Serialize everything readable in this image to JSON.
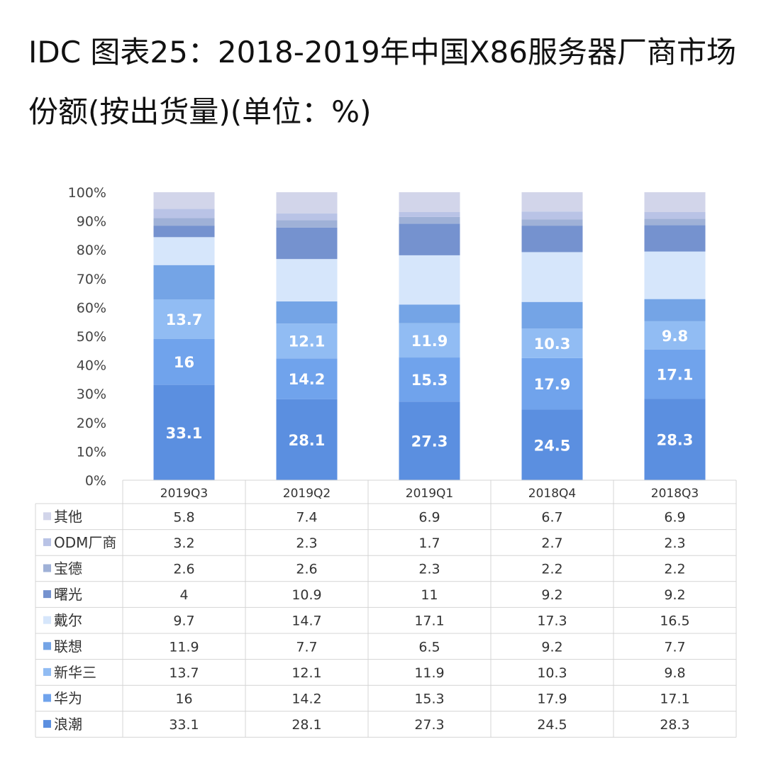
{
  "title": "IDC 图表25：2018-2019年中国X86服务器厂商市场份额(按出货量)(单位：%)",
  "chart_data": {
    "type": "bar",
    "stacked": true,
    "categories": [
      "2019Q3",
      "2019Q2",
      "2019Q1",
      "2018Q4",
      "2018Q3"
    ],
    "y_ticks": [
      "0%",
      "10%",
      "20%",
      "30%",
      "40%",
      "50%",
      "60%",
      "70%",
      "80%",
      "90%",
      "100%"
    ],
    "ylim": [
      0,
      100
    ],
    "grid": false,
    "legend_placement": "data table below chart",
    "series": [
      {
        "name": "浪潮",
        "color": "#5b8fe0",
        "values": [
          33.1,
          28.1,
          27.3,
          24.5,
          28.3
        ],
        "labels": [
          "33.1",
          "28.1",
          "27.3",
          "24.5",
          "28.3"
        ]
      },
      {
        "name": "华为",
        "color": "#70a3ec",
        "values": [
          16,
          14.2,
          15.3,
          17.9,
          17.1
        ],
        "labels": [
          "16",
          "14.2",
          "15.3",
          "17.9",
          "17.1"
        ]
      },
      {
        "name": "新华三",
        "color": "#91bcf3",
        "values": [
          13.7,
          12.1,
          11.9,
          10.3,
          9.8
        ],
        "labels": [
          "13.7",
          "12.1",
          "11.9",
          "10.3",
          "9.8"
        ]
      },
      {
        "name": "联想",
        "color": "#74a4e6",
        "values": [
          11.9,
          7.7,
          6.5,
          9.2,
          7.7
        ]
      },
      {
        "name": "戴尔",
        "color": "#d6e6fb",
        "values": [
          9.7,
          14.7,
          17.1,
          17.3,
          16.5
        ]
      },
      {
        "name": "曙光",
        "color": "#7592cf",
        "values": [
          4,
          10.9,
          11,
          9.2,
          9.2
        ]
      },
      {
        "name": "宝德",
        "color": "#9fb1d7",
        "values": [
          2.6,
          2.6,
          2.3,
          2.2,
          2.2
        ]
      },
      {
        "name": "ODM厂商",
        "color": "#b9c3e6",
        "values": [
          3.2,
          2.3,
          1.7,
          2.7,
          2.3
        ]
      },
      {
        "name": "其他",
        "color": "#d2d5ea",
        "values": [
          5.8,
          7.4,
          6.9,
          6.7,
          6.9
        ]
      }
    ],
    "table": {
      "row_order": [
        "其他",
        "ODM厂商",
        "宝德",
        "曙光",
        "戴尔",
        "联想",
        "新华三",
        "华为",
        "浪潮"
      ],
      "rows": [
        {
          "name": "其他",
          "color": "#d2d5ea",
          "cells": [
            "5.8",
            "7.4",
            "6.9",
            "6.7",
            "6.9"
          ]
        },
        {
          "name": "ODM厂商",
          "color": "#b9c3e6",
          "cells": [
            "3.2",
            "2.3",
            "1.7",
            "2.7",
            "2.3"
          ]
        },
        {
          "name": "宝德",
          "color": "#9fb1d7",
          "cells": [
            "2.6",
            "2.6",
            "2.3",
            "2.2",
            "2.2"
          ]
        },
        {
          "name": "曙光",
          "color": "#7592cf",
          "cells": [
            "4",
            "10.9",
            "11",
            "9.2",
            "9.2"
          ]
        },
        {
          "name": "戴尔",
          "color": "#d6e6fb",
          "cells": [
            "9.7",
            "14.7",
            "17.1",
            "17.3",
            "16.5"
          ]
        },
        {
          "name": "联想",
          "color": "#74a4e6",
          "cells": [
            "11.9",
            "7.7",
            "6.5",
            "9.2",
            "7.7"
          ]
        },
        {
          "name": "新华三",
          "color": "#91bcf3",
          "cells": [
            "13.7",
            "12.1",
            "11.9",
            "10.3",
            "9.8"
          ]
        },
        {
          "name": "华为",
          "color": "#70a3ec",
          "cells": [
            "16",
            "14.2",
            "15.3",
            "17.9",
            "17.1"
          ]
        },
        {
          "name": "浪潮",
          "color": "#5b8fe0",
          "cells": [
            "33.1",
            "28.1",
            "27.3",
            "24.5",
            "28.3"
          ]
        }
      ]
    }
  }
}
